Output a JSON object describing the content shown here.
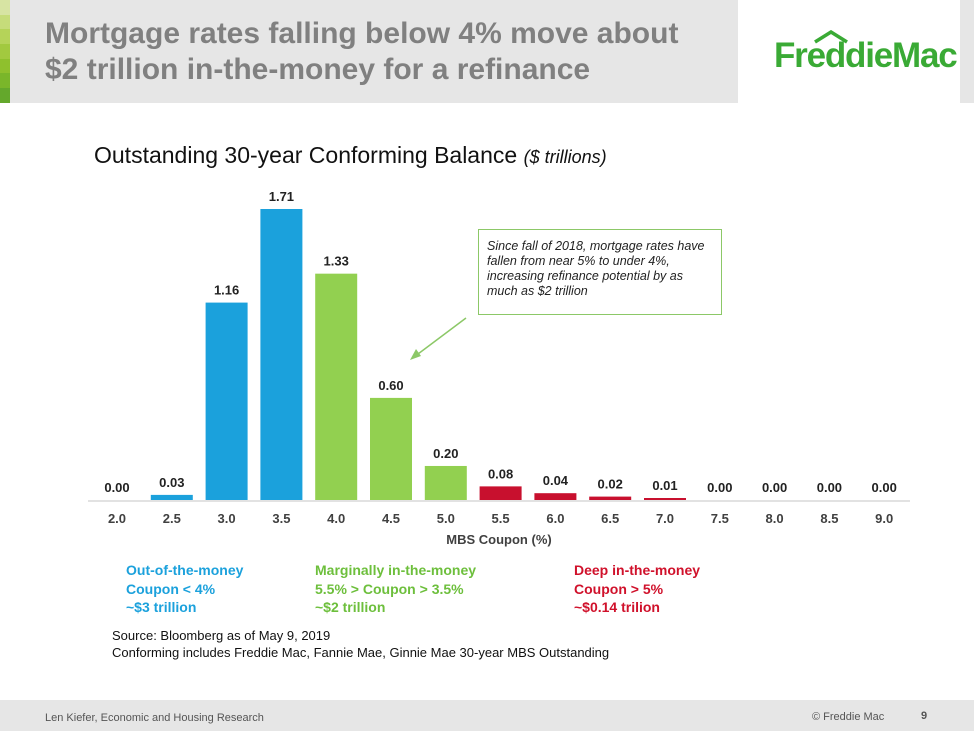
{
  "slide": {
    "title_line1": "Mortgage rates falling below 4% move about",
    "title_line2": "$2 trillion in-the-money for a refinance",
    "logo_text": "FreddieMac",
    "accent_strip_colors": [
      "#d7e4a3",
      "#c6dc7a",
      "#b5d359",
      "#a2c93f",
      "#8fc02d",
      "#7ab62a",
      "#64a82c"
    ]
  },
  "chart_data": {
    "type": "bar",
    "title": "Outstanding 30-year Conforming Balance",
    "title_unit": "($ trillions)",
    "xlabel": "MBS Coupon (%)",
    "ylabel": "",
    "ylim": [
      0,
      1.8
    ],
    "categories": [
      "2.0",
      "2.5",
      "3.0",
      "3.5",
      "4.0",
      "4.5",
      "5.0",
      "5.5",
      "6.0",
      "6.5",
      "7.0",
      "7.5",
      "8.0",
      "8.5",
      "9.0"
    ],
    "values": [
      0.0,
      0.03,
      1.16,
      1.71,
      1.33,
      0.6,
      0.2,
      0.08,
      0.04,
      0.02,
      0.01,
      0.0,
      0.0,
      0.0,
      0.0
    ],
    "value_labels": [
      "0.00",
      "0.03",
      "1.16",
      "1.71",
      "1.33",
      "0.60",
      "0.20",
      "0.08",
      "0.04",
      "0.02",
      "0.01",
      "0.00",
      "0.00",
      "0.00",
      "0.00"
    ],
    "bar_colors": [
      "#1ba1dc",
      "#1ba1dc",
      "#1ba1dc",
      "#1ba1dc",
      "#92d050",
      "#92d050",
      "#92d050",
      "#c8102e",
      "#c8102e",
      "#c8102e",
      "#c8102e",
      "#c8102e",
      "#c8102e",
      "#c8102e",
      "#c8102e"
    ],
    "grid": false,
    "annotation": {
      "text": "Since fall of 2018, mortgage rates have fallen from near 5% to under 4%, increasing refinance potential by as much as $2 trillion"
    }
  },
  "legend": [
    {
      "line1": "Out-of-the-money",
      "line2": "Coupon < 4%",
      "line3": "~$3 trillion",
      "color": "#1ba1dc"
    },
    {
      "line1": "Marginally in-the-money",
      "line2": "5.5% > Coupon > 3.5%",
      "line3": "~$2 trillion",
      "color": "#6dbf3c"
    },
    {
      "line1": "Deep in-the-money",
      "line2": "Coupon > 5%",
      "line3": "~$0.14 trilion",
      "color": "#d0112b"
    }
  ],
  "source": {
    "line1": "Source: Bloomberg as of May 9, 2019",
    "line2": "Conforming includes Freddie Mac, Fannie Mae, Ginnie Mae 30-year MBS Outstanding"
  },
  "footer": {
    "author": "Len Kiefer, Economic and Housing Research",
    "copyright": "©  Freddie Mac",
    "page_number": "9"
  }
}
